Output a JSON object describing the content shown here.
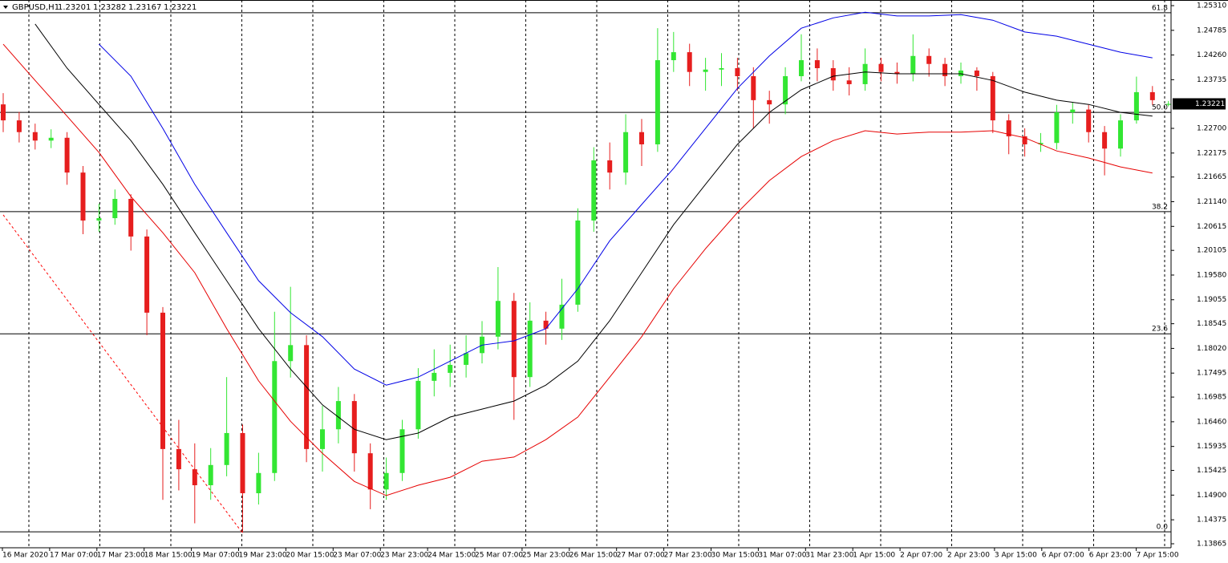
{
  "chart_data": {
    "type": "candlestick",
    "title": "GBPUSD,H1",
    "ohlc": [
      1.23201,
      1.23282,
      1.23167,
      1.23221
    ],
    "last_price": 1.23221,
    "categories": [
      "16 Mar 2020",
      "17 Mar 07:00",
      "17 Mar 23:00",
      "18 Mar 15:00",
      "19 Mar 07:00",
      "19 Mar 23:00",
      "20 Mar 15:00",
      "23 Mar 07:00",
      "23 Mar 23:00",
      "24 Mar 15:00",
      "25 Mar 07:00",
      "25 Mar 23:00",
      "26 Mar 15:00",
      "27 Mar 07:00",
      "27 Mar 23:00",
      "30 Mar 15:00",
      "31 Mar 07:00",
      "31 Mar 23:00",
      "1 Apr 15:00",
      "2 Apr 07:00",
      "2 Apr 23:00",
      "3 Apr 15:00",
      "6 Apr 07:00",
      "6 Apr 23:00",
      "7 Apr 15:00"
    ],
    "open": [
      1.2321,
      1.2287,
      1.2262,
      1.2244,
      1.225,
      1.2176,
      1.2074,
      1.2079,
      1.212,
      1.204,
      1.1878,
      1.1588,
      1.1545,
      1.1511,
      1.1554,
      1.1622,
      1.1494,
      1.1537,
      1.1775,
      1.1809,
      1.1588,
      1.163,
      1.169,
      1.1579,
      1.1502,
      1.1537,
      1.163,
      1.1733,
      1.175,
      1.1767,
      1.1792,
      1.1827,
      1.1903,
      1.1741,
      1.1861,
      1.1844,
      1.1895,
      1.2074,
      1.2202,
      1.2176,
      1.2262,
      1.2236,
      1.2415,
      1.2432,
      1.239,
      1.2395,
      1.2398,
      1.2381,
      1.233,
      1.2321,
      1.2381,
      1.2415,
      1.2398,
      1.2372,
      1.2364,
      1.2407,
      1.239,
      1.2386,
      1.2424,
      1.2407,
      1.2381,
      1.2393,
      1.2381,
      1.2287,
      1.2253,
      1.2236,
      1.2239,
      1.2304,
      1.231,
      1.2262,
      1.2227,
      1.2287,
      1.2347,
      1.23201
    ],
    "high": [
      1.2345,
      1.2305,
      1.228,
      1.2268,
      1.2262,
      1.219,
      1.211,
      1.214,
      1.213,
      1.2055,
      1.189,
      1.165,
      1.16,
      1.159,
      1.1741,
      1.164,
      1.158,
      1.188,
      1.1933,
      1.183,
      1.168,
      1.172,
      1.1705,
      1.16,
      1.157,
      1.165,
      1.176,
      1.18,
      1.181,
      1.183,
      1.186,
      1.1975,
      1.192,
      1.19,
      1.188,
      1.195,
      1.21,
      1.223,
      1.224,
      1.23,
      1.229,
      1.2483,
      1.2475,
      1.245,
      1.242,
      1.243,
      1.242,
      1.24,
      1.235,
      1.24,
      1.247,
      1.244,
      1.2415,
      1.24,
      1.244,
      1.242,
      1.241,
      1.247,
      1.244,
      1.242,
      1.241,
      1.24,
      1.239,
      1.23,
      1.227,
      1.226,
      1.232,
      1.2325,
      1.232,
      1.2275,
      1.23,
      1.238,
      1.236,
      1.23282
    ],
    "low": [
      1.2262,
      1.224,
      1.2225,
      1.2228,
      1.215,
      1.2045,
      1.205,
      1.2065,
      1.201,
      1.183,
      1.148,
      1.15,
      1.143,
      1.148,
      1.153,
      1.141,
      1.147,
      1.152,
      1.174,
      1.156,
      1.154,
      1.16,
      1.154,
      1.146,
      1.148,
      1.152,
      1.161,
      1.17,
      1.172,
      1.174,
      1.177,
      1.18,
      1.165,
      1.172,
      1.181,
      1.182,
      1.188,
      1.205,
      1.214,
      1.215,
      1.219,
      1.222,
      1.239,
      1.236,
      1.235,
      1.236,
      1.235,
      1.227,
      1.228,
      1.23,
      1.237,
      1.237,
      1.235,
      1.234,
      1.235,
      1.237,
      1.2365,
      1.237,
      1.238,
      1.236,
      1.2365,
      1.235,
      1.226,
      1.2215,
      1.221,
      1.222,
      1.2225,
      1.228,
      1.224,
      1.217,
      1.221,
      1.228,
      1.232,
      1.23167
    ],
    "close": [
      1.2287,
      1.2262,
      1.2244,
      1.225,
      1.2176,
      1.2074,
      1.2079,
      1.212,
      1.204,
      1.1878,
      1.1588,
      1.1545,
      1.1511,
      1.1554,
      1.1622,
      1.1494,
      1.1537,
      1.1775,
      1.1809,
      1.1588,
      1.163,
      1.169,
      1.1579,
      1.1502,
      1.1537,
      1.163,
      1.1733,
      1.175,
      1.1767,
      1.1792,
      1.1827,
      1.1903,
      1.1741,
      1.1861,
      1.1844,
      1.1895,
      1.2074,
      1.2202,
      1.2176,
      1.2262,
      1.2236,
      1.2415,
      1.2432,
      1.239,
      1.2395,
      1.2398,
      1.2381,
      1.233,
      1.2321,
      1.2381,
      1.2415,
      1.2398,
      1.2372,
      1.2364,
      1.2407,
      1.239,
      1.2386,
      1.2424,
      1.2407,
      1.2381,
      1.2393,
      1.2381,
      1.2287,
      1.2253,
      1.2236,
      1.2239,
      1.2304,
      1.231,
      1.2262,
      1.2227,
      1.2287,
      1.2347,
      1.233,
      1.23221
    ],
    "up_color": "#33e633",
    "down_color": "#e61e1e",
    "moving_averages": [
      {
        "color": "#e60000",
        "values": [
          1.2449,
          1.2372,
          1.2296,
          1.2219,
          1.2125,
          1.2048,
          1.1963,
          1.1844,
          1.1733,
          1.1647,
          1.1579,
          1.1519,
          1.1489,
          1.1511,
          1.1528,
          1.1562,
          1.1571,
          1.1608,
          1.1656,
          1.1741,
          1.1827,
          1.1929,
          1.2014,
          1.2091,
          1.2159,
          1.221,
          1.2244,
          1.2265,
          1.2258,
          1.2262,
          1.2262,
          1.2265,
          1.225,
          1.2222,
          1.2207,
          1.2188,
          1.2175
        ]
      },
      {
        "color": "#000000",
        "values": [
          null,
          1.2492,
          1.2398,
          1.2321,
          1.2244,
          1.2151,
          1.2048,
          1.1946,
          1.1844,
          1.1758,
          1.1682,
          1.163,
          1.1608,
          1.1622,
          1.1656,
          1.1673,
          1.169,
          1.1724,
          1.1775,
          1.1861,
          1.1963,
          1.2065,
          1.2151,
          1.2236,
          1.2304,
          1.2352,
          1.2381,
          1.239,
          1.2386,
          1.2386,
          1.2386,
          1.2372,
          1.2347,
          1.233,
          1.2321,
          1.2304,
          1.2296
        ]
      },
      {
        "color": "#0000e6",
        "values": [
          null,
          null,
          null,
          1.2449,
          1.2381,
          1.227,
          1.2151,
          1.2048,
          1.1946,
          1.1878,
          1.1827,
          1.1758,
          1.1724,
          1.1741,
          1.1775,
          1.1809,
          1.1818,
          1.1844,
          1.1929,
          1.2031,
          1.2108,
          1.2185,
          1.227,
          1.2355,
          1.2424,
          1.2483,
          1.2505,
          1.2517,
          1.2509,
          1.2509,
          1.2512,
          1.25,
          1.2475,
          1.2466,
          1.2449,
          1.2432,
          1.242
        ]
      }
    ],
    "trendline": {
      "color": "#ff0000",
      "x": [
        0,
        15
      ],
      "values": [
        1.2086,
        1.1409
      ]
    },
    "fib": {
      "levels": [
        61.8,
        {
          "value": 50,
          "label": "50.0"
        },
        38.2,
        23.6,
        {
          "value": 0,
          "label": "0.0"
        }
      ],
      "prices": [
        1.2516,
        1.2304,
        1.2093,
        1.1833,
        1.1412
      ]
    },
    "ylim": [
      1.1378,
      1.2543
    ],
    "yticks": [
      {
        "value": 1.2531,
        "label": "1.25310"
      },
      1.24785,
      {
        "value": 1.2426,
        "label": "1.24260"
      },
      1.23735,
      {
        "value": 1.227,
        "label": "1.22700"
      },
      1.22175,
      1.21665,
      {
        "value": 1.2114,
        "label": "1.21140"
      },
      1.20615,
      1.20105,
      {
        "value": 1.1958,
        "label": "1.19580"
      },
      1.19055,
      1.18545,
      {
        "value": 1.1802,
        "label": "1.18020"
      },
      1.17495,
      1.16985,
      {
        "value": 1.1646,
        "label": "1.16460"
      },
      1.15935,
      1.15425,
      {
        "value": 1.149,
        "label": "1.14900"
      },
      1.14375,
      1.13865
    ],
    "grid": true
  }
}
